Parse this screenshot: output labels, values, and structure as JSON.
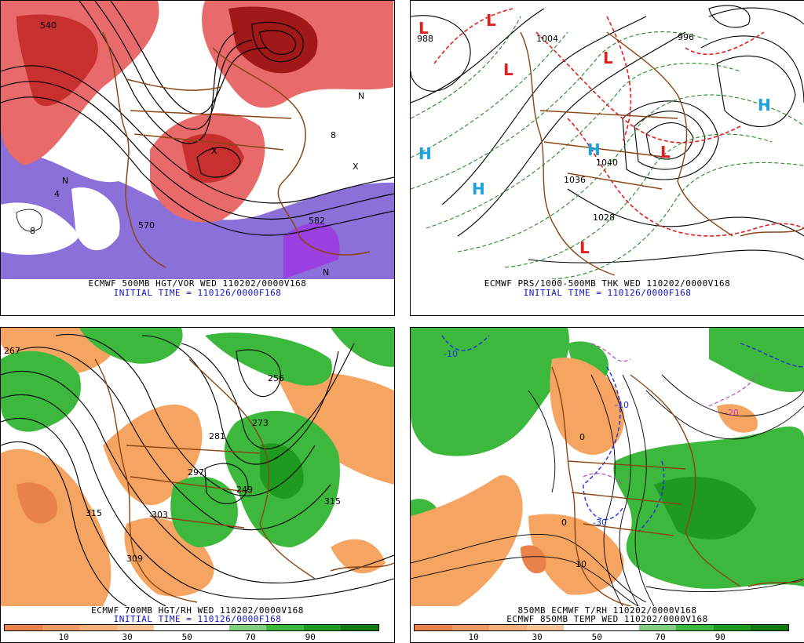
{
  "panels": [
    {
      "id": "tl",
      "caption1": "ECMWF 500MB HGT/VOR WED 110202/0000V168",
      "caption2": "INITIAL TIME = 110126/0000F168",
      "labels": [
        "540",
        "570",
        "582",
        "N",
        "N",
        "N",
        "X",
        "X",
        "8",
        "8",
        "4"
      ]
    },
    {
      "id": "tr",
      "caption1": "ECMWF PRS/1000-500MB THK WED 110202/0000V168",
      "caption2": "INITIAL TIME = 110126/0000F168",
      "labels": [
        "988",
        "1004",
        "1036",
        "1028",
        "1040",
        "996",
        "H",
        "H",
        "H",
        "H",
        "L",
        "L",
        "L",
        "L",
        "L",
        "L"
      ]
    },
    {
      "id": "bl",
      "caption1": "ECMWF 700MB HGT/RH WED 110202/0000V168",
      "caption2": "INITIAL TIME = 110126/0000F168",
      "labels": [
        "267",
        "281",
        "297",
        "303",
        "309",
        "315",
        "315",
        "273",
        "249",
        "256"
      ]
    },
    {
      "id": "br",
      "caption1": "850MB ECMWF T/RH 110202/0000V168",
      "caption2": "ECMWF 850MB TEMP WED 110202/0000V168",
      "labels": [
        "-10",
        "0",
        "-10",
        "-20",
        "-30",
        "0",
        "10"
      ]
    }
  ],
  "colorbar": {
    "ticks": [
      "10",
      "30",
      "50",
      "70",
      "90"
    ],
    "colors": [
      "#e8824a",
      "#f09a62",
      "#f5b07c",
      "#f8c597",
      "#ffffff",
      "#ffffff",
      "#7fd07f",
      "#3cb83c",
      "#1e9a1e",
      "#0f7a0f"
    ]
  },
  "colors": {
    "dry": "#f5a561",
    "moist": "#3cb83c",
    "vort_pos": "#e04848",
    "vort_neg": "#8a70d8",
    "coast": "#8b4513"
  }
}
